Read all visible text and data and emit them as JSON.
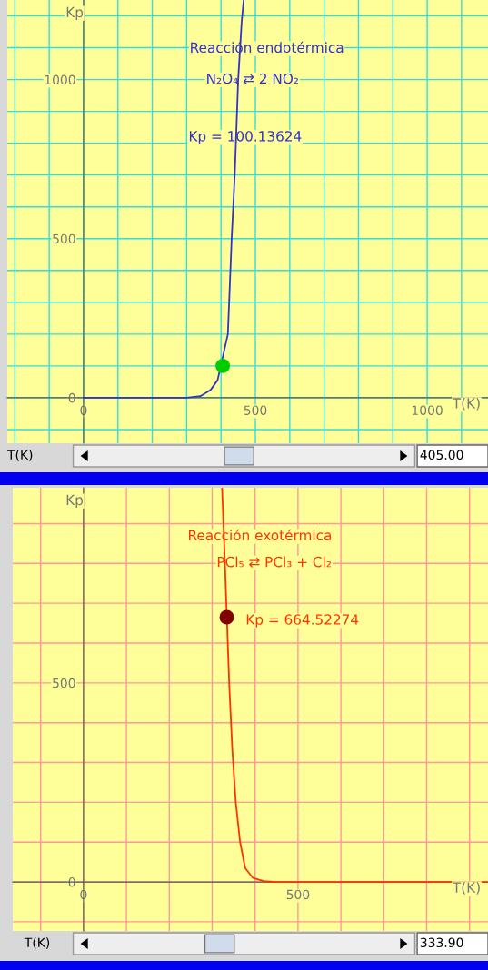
{
  "chart_data": [
    {
      "type": "line",
      "title": "Reacción endotérmica",
      "subtitle": "N₂O₄ ⇄ 2 NO₂",
      "xlabel": "T(K)",
      "ylabel": "Kp",
      "annotations": [
        "Kp = 100.13624",
        "T(K)",
        "405.00"
      ],
      "series": [
        {
          "color": "#3333cc",
          "x": [
            0,
            300,
            340,
            370,
            390,
            420,
            431,
            440,
            450,
            460,
            466
          ],
          "values": [
            0,
            0,
            5,
            25,
            55,
            200,
            500,
            700,
            1000,
            1180,
            1250
          ]
        },
        {
          "type": "scatter",
          "color": "#00cc00",
          "x": [
            405
          ],
          "values": [
            100
          ]
        }
      ],
      "xlim": [
        -222,
        1177
      ],
      "ylim": [
        -143,
        1250
      ],
      "xticks": [
        {
          "value": -200,
          "label": null
        },
        {
          "value": -100,
          "label": null
        },
        0,
        {
          "value": 100,
          "label": null
        },
        {
          "value": 200,
          "label": null
        },
        {
          "value": 300,
          "label": null
        },
        {
          "value": 400,
          "label": null
        },
        500,
        {
          "value": 600,
          "label": null
        },
        {
          "value": 700,
          "label": null
        },
        {
          "value": 800,
          "label": null
        },
        {
          "value": 900,
          "label": null
        },
        1000,
        {
          "value": 1100,
          "label": null
        }
      ],
      "yticks": [
        {
          "value": -100,
          "label": null
        },
        0,
        {
          "value": 100,
          "label": null
        },
        {
          "value": 200,
          "label": null
        },
        {
          "value": 300,
          "label": null
        },
        {
          "value": 400,
          "label": null
        },
        500,
        {
          "value": 600,
          "label": null
        },
        {
          "value": 700,
          "label": null
        },
        {
          "value": 800,
          "label": null
        },
        {
          "value": 900,
          "label": null
        },
        1000,
        {
          "value": 1100,
          "label": null
        },
        {
          "value": 1200,
          "label": null
        }
      ],
      "grid": true,
      "line_style": "solid"
    },
    {
      "type": "line",
      "title": "Reacción exotérmica",
      "subtitle": "PCl₅ ⇄ PCl₃ + Cl₂",
      "xlabel": "T(K)",
      "ylabel": "Kp",
      "annotations": [
        "Kp = 664.52274",
        "T(K)",
        "333.90"
      ],
      "series": [
        {
          "color": "#ff3300",
          "x": [
            323,
            328,
            340,
            347,
            355,
            365,
            377,
            395,
            420,
            450,
            940
          ],
          "values": [
            990,
            850,
            490,
            330,
            200,
            100,
            35,
            10,
            2,
            0,
            0
          ]
        },
        {
          "type": "scatter",
          "color": "#800000",
          "x": [
            333.9
          ],
          "values": [
            665
          ]
        }
      ],
      "xlim": [
        -165,
        943
      ],
      "ylim": [
        -123,
        990
      ],
      "xticks": [
        {
          "value": -100,
          "label": null
        },
        0,
        {
          "value": 100,
          "label": null
        },
        {
          "value": 200,
          "label": null
        },
        {
          "value": 300,
          "label": null
        },
        {
          "value": 400,
          "label": null
        },
        500,
        {
          "value": 600,
          "label": null
        },
        {
          "value": 700,
          "label": null
        },
        {
          "value": 800,
          "label": null
        },
        {
          "value": 900,
          "label": null
        }
      ],
      "yticks": [
        {
          "value": -100,
          "label": null
        },
        0,
        {
          "value": 100,
          "label": null
        },
        {
          "value": 200,
          "label": null
        },
        {
          "value": 300,
          "label": null
        },
        {
          "value": 400,
          "label": null
        },
        500,
        {
          "value": 600,
          "label": null
        },
        {
          "value": 700,
          "label": null
        },
        {
          "value": 800,
          "label": null
        },
        {
          "value": 900,
          "label": null
        }
      ],
      "grid": true,
      "line_style": "solid"
    }
  ]
}
